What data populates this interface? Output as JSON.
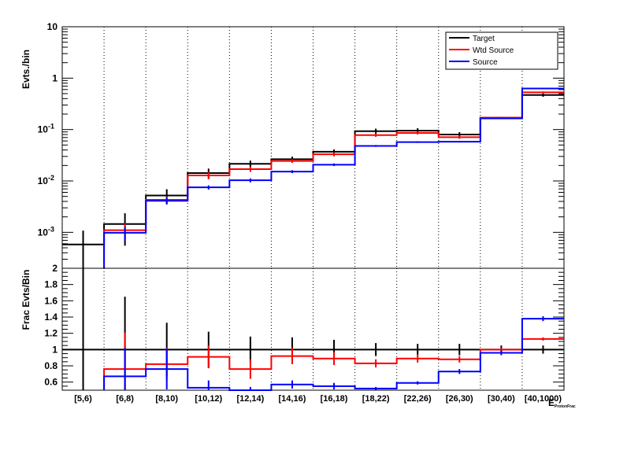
{
  "chart_data": [
    {
      "type": "histogram",
      "ylabel": "Evts./bin",
      "yscale": "log",
      "ylim": [
        0.0002,
        10
      ],
      "y_tick_labels": [
        "10",
        "1",
        "10^-1",
        "10^-2",
        "10^-3"
      ],
      "categories": [
        "[5,6)",
        "[6,8)",
        "[8,10)",
        "[10,12)",
        "[12,14)",
        "[14,16)",
        "[16,18)",
        "[18,22)",
        "[22,26)",
        "[26,30)",
        "[30,40)",
        "[40,1000)"
      ],
      "x_axis_label_partial": "E",
      "x_axis_label_subscript": "ProtonFrac",
      "grid": "vertical dotted",
      "legend_placement": "top-right",
      "series": [
        {
          "name": "Target",
          "color": "#000000",
          "values": [
            0.00058,
            0.00145,
            0.0052,
            0.0142,
            0.0215,
            0.0265,
            0.037,
            0.093,
            0.095,
            0.08,
            0.17,
            0.47
          ],
          "errors": [
            0.0005,
            0.0009,
            0.0017,
            0.0032,
            0.0034,
            0.0032,
            0.004,
            0.011,
            0.011,
            0.009,
            0.007,
            0.035
          ]
        },
        {
          "name": "Wtd Source",
          "color": "#ff0000",
          "values": [
            null,
            0.0011,
            0.0043,
            0.0128,
            0.017,
            0.0245,
            0.033,
            0.078,
            0.086,
            0.071,
            0.17,
            0.53
          ],
          "errors": [
            null,
            0.0004,
            0.0006,
            0.002,
            0.002,
            0.002,
            0.003,
            0.006,
            0.006,
            0.005,
            0.004,
            0.02
          ]
        },
        {
          "name": "Source",
          "color": "#0000ff",
          "values": [
            null,
            0.00098,
            0.0041,
            0.0075,
            0.0103,
            0.0152,
            0.0207,
            0.048,
            0.057,
            0.058,
            0.165,
            0.63
          ],
          "errors": [
            null,
            0.0003,
            0.0006,
            0.0007,
            0.0009,
            0.001,
            0.0012,
            0.002,
            0.002,
            0.002,
            0.003,
            0.01
          ]
        }
      ]
    },
    {
      "type": "histogram",
      "ylabel": "Frac Evts/Bin",
      "ylim": [
        0.5,
        2
      ],
      "y_ticks": [
        0.6,
        0.8,
        1,
        1.2,
        1.4,
        1.6,
        1.8,
        2
      ],
      "y_tick_labels": [
        "0.6",
        "0.8",
        "1",
        "1.2",
        "1.4",
        "1.6",
        "1.8",
        "2"
      ],
      "reference_line": 1,
      "categories": [
        "[5,6)",
        "[6,8)",
        "[8,10)",
        "[10,12)",
        "[12,14)",
        "[14,16)",
        "[16,18)",
        "[18,22)",
        "[22,26)",
        "[26,30)",
        "[30,40)",
        "[40,1000)"
      ],
      "series": [
        {
          "name": "Target",
          "color": "#000000",
          "values": [
            1,
            1,
            1,
            1,
            1,
            1,
            1,
            1,
            1,
            1,
            1,
            1
          ],
          "errors": [
            1.0,
            0.65,
            0.33,
            0.22,
            0.16,
            0.15,
            0.12,
            0.08,
            0.07,
            0.07,
            0.05,
            0.05
          ]
        },
        {
          "name": "Wtd Source",
          "color": "#ff0000",
          "values": [
            null,
            0.76,
            0.82,
            0.91,
            0.76,
            0.92,
            0.89,
            0.83,
            0.89,
            0.88,
            1.0,
            1.13
          ],
          "errors": [
            null,
            0.45,
            0.2,
            0.14,
            0.12,
            0.1,
            0.08,
            0.05,
            0.05,
            0.04,
            0.02,
            0.02
          ]
        },
        {
          "name": "Source",
          "color": "#0000ff",
          "values": [
            null,
            0.67,
            0.76,
            0.53,
            0.49,
            0.57,
            0.55,
            0.52,
            0.59,
            0.73,
            0.96,
            1.38
          ],
          "errors": [
            null,
            0.35,
            0.25,
            0.09,
            0.05,
            0.05,
            0.04,
            0.02,
            0.02,
            0.03,
            0.03,
            0.03
          ]
        }
      ]
    }
  ]
}
